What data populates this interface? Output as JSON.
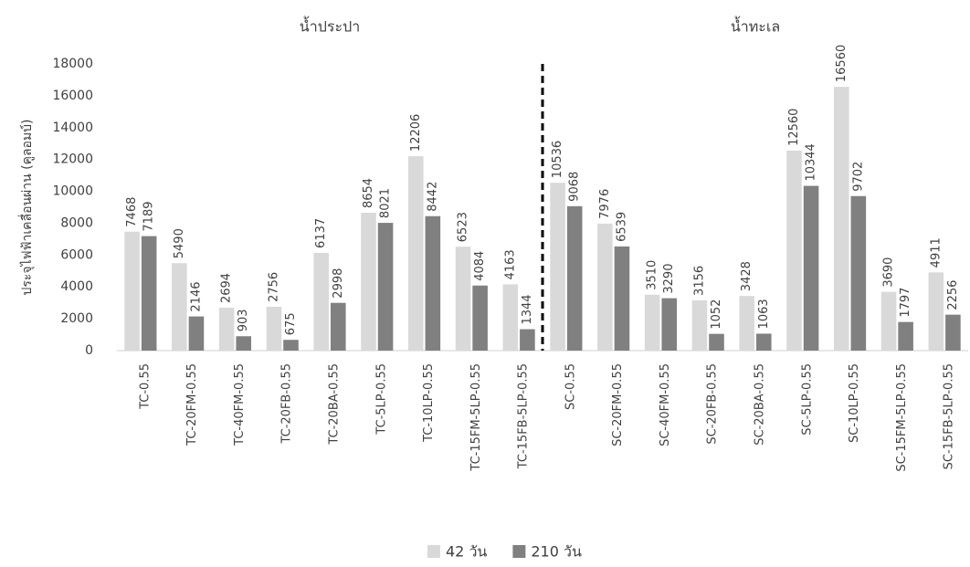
{
  "chart_data": {
    "type": "bar",
    "y_label": "ประจุไฟฟ้าเคลื่อนผ่าน (คูลอมบ์)",
    "group_labels": [
      "น้ำประปา",
      "น้ำทะเล"
    ],
    "categories": [
      "TC-0.55",
      "TC-20FM-0.55",
      "TC-40FM-0.55",
      "TC-20FB-0.55",
      "TC-20BA-0.55",
      "TC-5LP-0.55",
      "TC-10LP-0.55",
      "TC-15FM-5LP-0.55",
      "TC-15FB-5LP-0.55",
      "SC-0.55",
      "SC-20FM-0.55",
      "SC-40FM-0.55",
      "SC-20FB-0.55",
      "SC-20BA-0.55",
      "SC-5LP-0.55",
      "SC-10LP-0.55",
      "SC-15FM-5LP-0.55",
      "SC-15FB-5LP-0.55"
    ],
    "series": [
      {
        "name": "42 วัน",
        "color": "#d9d9d9",
        "values": [
          7468,
          5490,
          2694,
          2756,
          6137,
          8654,
          12206,
          6523,
          4163,
          10536,
          7976,
          3510,
          3156,
          3428,
          12560,
          16560,
          3690,
          4911
        ]
      },
      {
        "name": "210 วัน",
        "color": "#808080",
        "values": [
          7189,
          2146,
          903,
          675,
          2998,
          8021,
          8442,
          4084,
          1344,
          9068,
          6539,
          3290,
          1052,
          1063,
          10344,
          9702,
          1797,
          2256
        ]
      }
    ],
    "ylim": [
      0,
      18000
    ],
    "yticks": [
      0,
      2000,
      4000,
      6000,
      8000,
      10000,
      12000,
      14000,
      16000,
      18000
    ],
    "grid": false,
    "legend": "bottom"
  }
}
